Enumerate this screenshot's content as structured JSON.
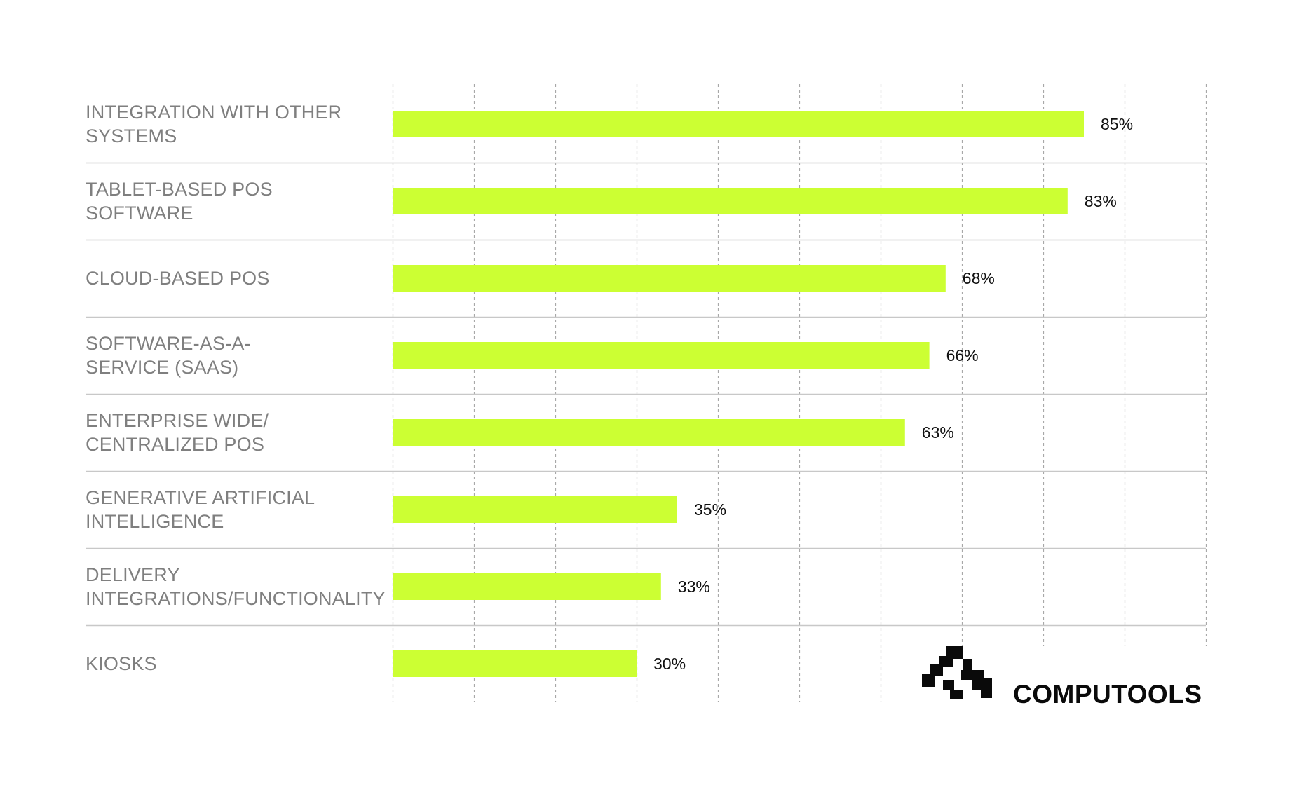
{
  "chart_data": {
    "type": "bar",
    "orientation": "horizontal",
    "categories": [
      [
        "INTEGRATION WITH OTHER",
        "SYSTEMS"
      ],
      [
        "TABLET-BASED POS",
        "SOFTWARE"
      ],
      [
        "CLOUD-BASED POS"
      ],
      [
        "SOFTWARE-AS-A-",
        "SERVICE (SAAS)"
      ],
      [
        "ENTERPRISE WIDE/",
        "CENTRALIZED POS"
      ],
      [
        "GENERATIVE ARTIFICIAL",
        "INTELLIGENCE"
      ],
      [
        "DELIVERY",
        "INTEGRATIONS/FUNCTIONALITY"
      ],
      [
        "KIOSKS"
      ]
    ],
    "values": [
      85,
      83,
      68,
      66,
      63,
      35,
      33,
      30
    ],
    "value_labels": [
      "85%",
      "83%",
      "68%",
      "66%",
      "63%",
      "35%",
      "33%",
      "30%"
    ],
    "xlim": [
      0,
      100
    ],
    "grid": "vertical dashed, every 10",
    "bar_color": "#ccff33",
    "label_color": "#7f7f7f",
    "separator_color": "#c8c8c8",
    "grid_color": "#a8a8a8"
  },
  "brand": {
    "name": "COMPUTOOLS",
    "icon": "computools-logo-icon"
  }
}
